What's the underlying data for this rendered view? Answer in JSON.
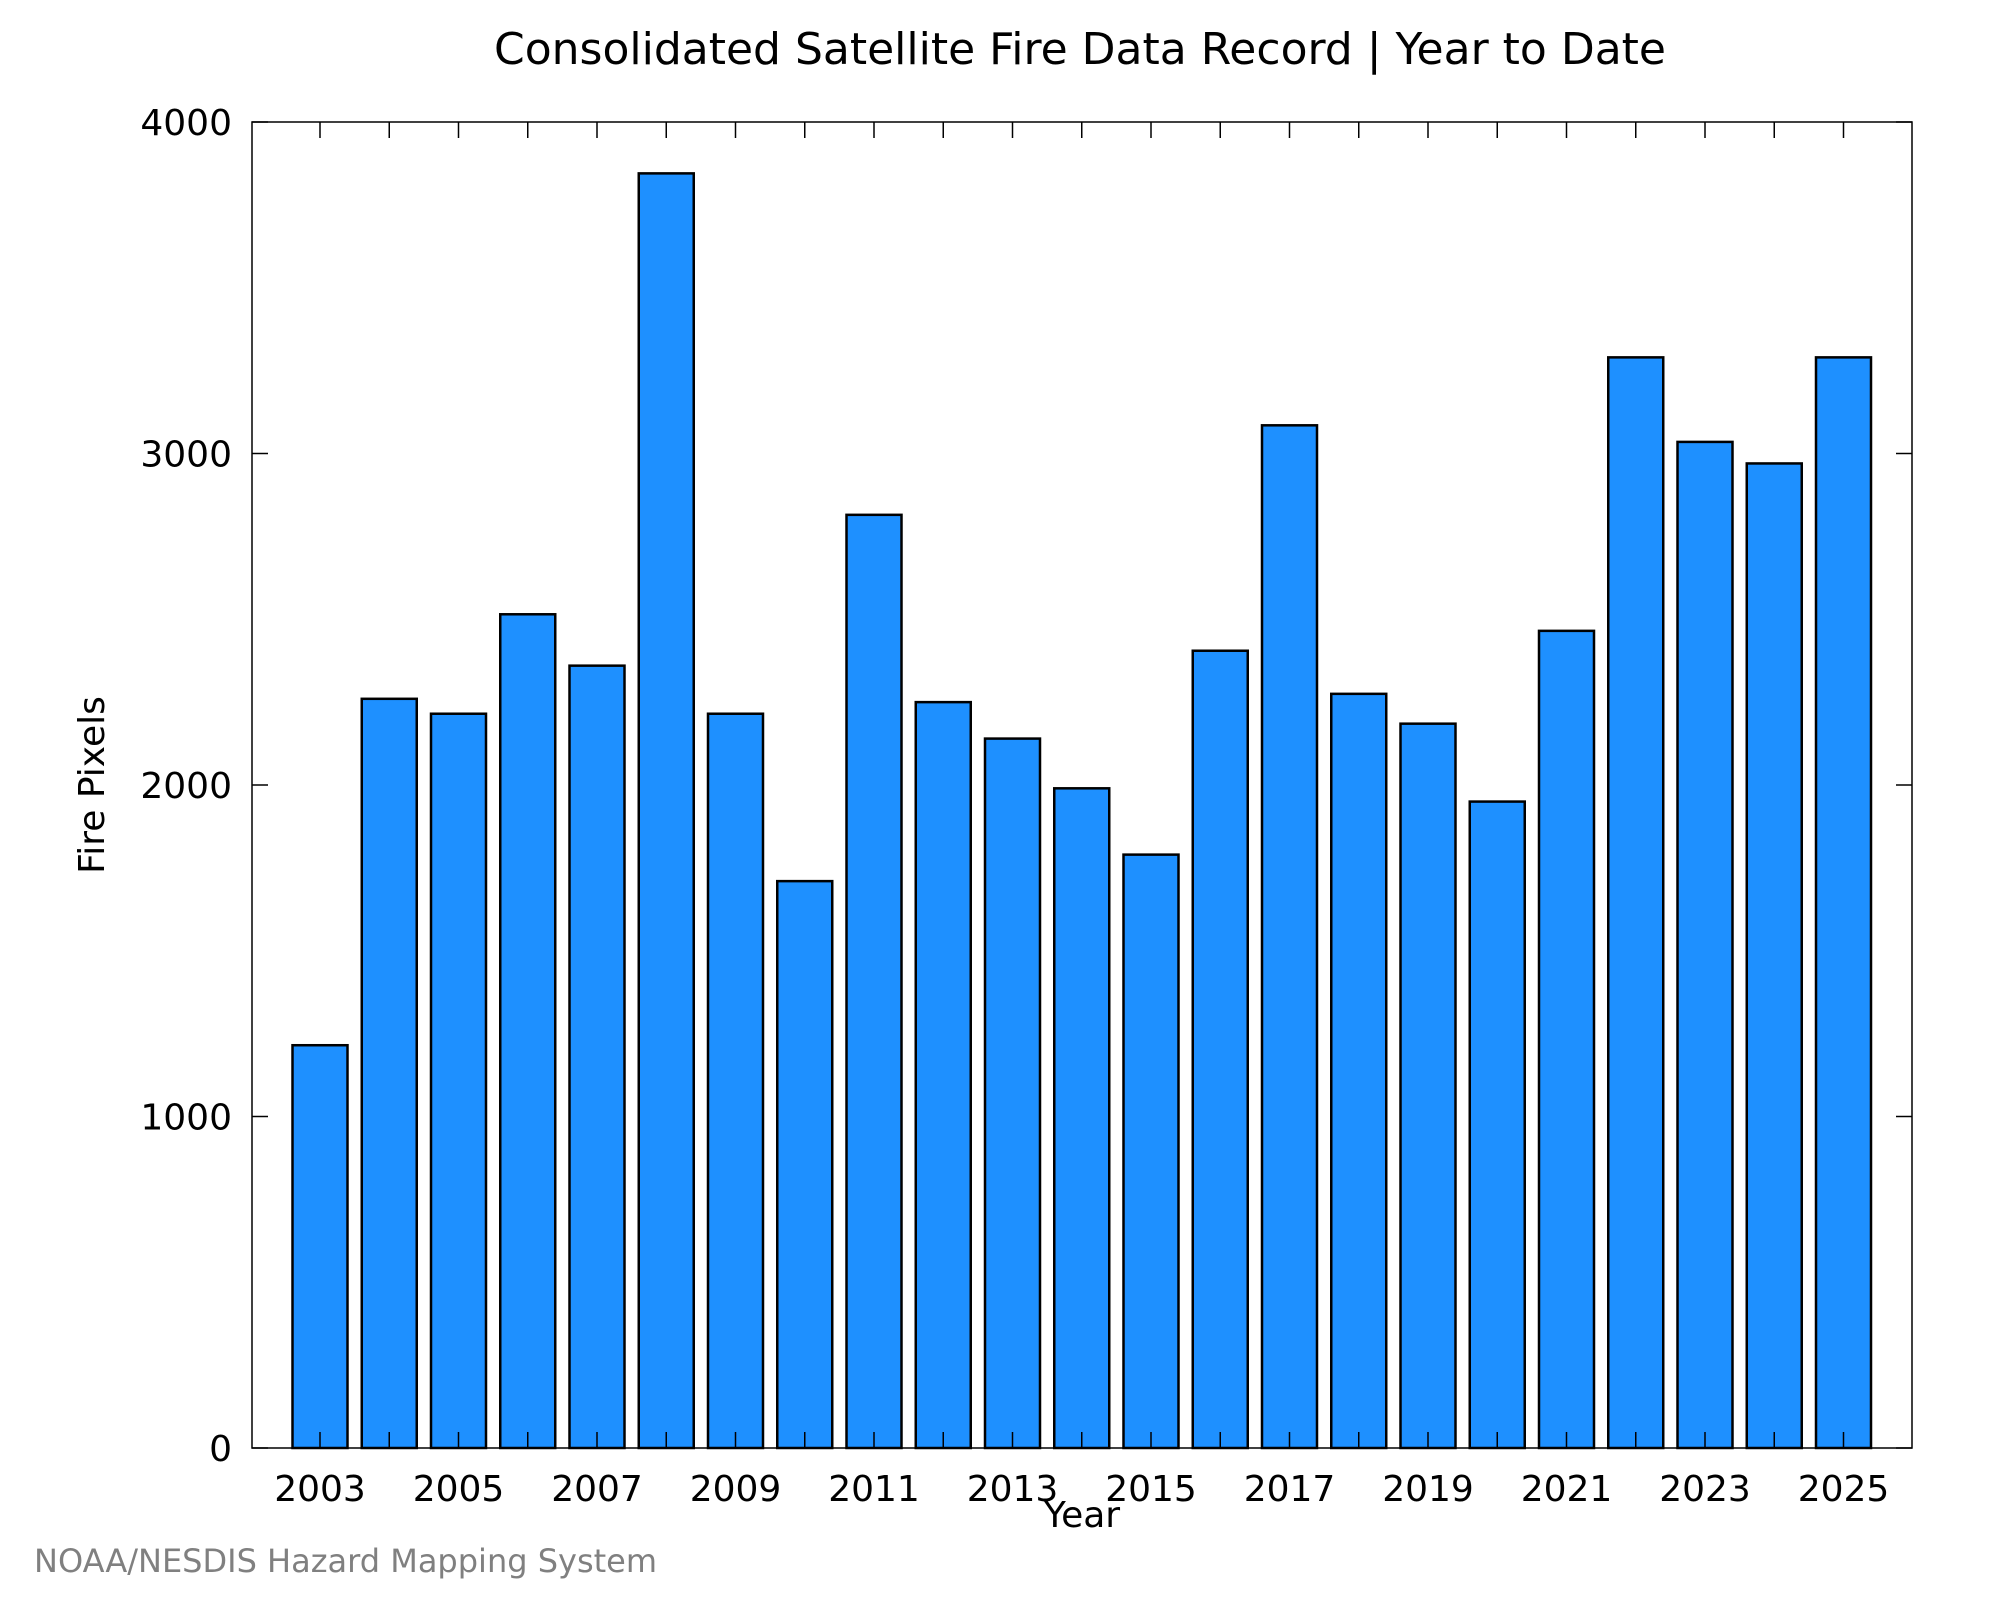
{
  "chart_data": {
    "type": "bar",
    "title": "Consolidated Satellite Fire Data Record | Year to Date",
    "xlabel": "Year",
    "ylabel": "Fire Pixels",
    "categories": [
      "2003",
      "2004",
      "2005",
      "2006",
      "2007",
      "2008",
      "2009",
      "2010",
      "2011",
      "2012",
      "2013",
      "2014",
      "2015",
      "2016",
      "2017",
      "2018",
      "2019",
      "2020",
      "2021",
      "2022",
      "2023",
      "2024",
      "2025"
    ],
    "values": [
      1215,
      2260,
      2215,
      2515,
      2360,
      3845,
      2215,
      1710,
      2815,
      2250,
      2140,
      1990,
      1790,
      2405,
      3085,
      2275,
      2185,
      1950,
      2465,
      3290,
      3035,
      2970,
      3290
    ],
    "x_tick_labels": [
      "2003",
      "2005",
      "2007",
      "2009",
      "2011",
      "2013",
      "2015",
      "2017",
      "2019",
      "2021",
      "2023",
      "2025"
    ],
    "y_tick_labels": [
      "0",
      "1000",
      "2000",
      "3000",
      "4000"
    ],
    "y_ticks": [
      0,
      1000,
      2000,
      3000,
      4000
    ],
    "ylim": [
      0,
      4000
    ],
    "grid": false,
    "bar_color": "#1E90FF",
    "bar_edge_color": "#000000"
  },
  "credit": "NOAA/NESDIS Hazard Mapping System"
}
